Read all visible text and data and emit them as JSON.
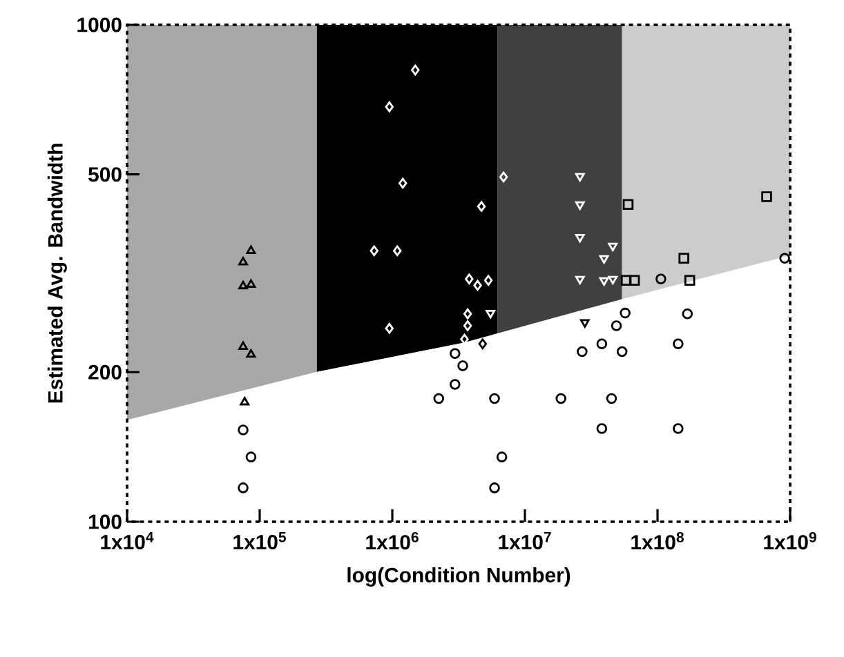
{
  "chart_data": {
    "type": "scatter",
    "xlabel": "log(Condition Number)",
    "ylabel": "Estimated Avg. Bandwidth",
    "log": "xy",
    "grid": false,
    "xlim": [
      10000,
      1000000000
    ],
    "ylim": [
      100,
      1000
    ],
    "xticks": [
      {
        "value": 10000,
        "label": "1x10$^{4}$"
      },
      {
        "value": 100000,
        "label": "1x10$^{5}$"
      },
      {
        "value": 1000000,
        "label": "1x10$^{6}$"
      },
      {
        "value": 10000000,
        "label": "1x10$^{7}$"
      },
      {
        "value": 100000000,
        "label": "1x10$^{8}$"
      },
      {
        "value": 1000000000,
        "label": "1x10$^{9}$"
      }
    ],
    "yticks": [
      100,
      200,
      500,
      1000
    ],
    "bands": [
      {
        "axis": "x",
        "from": 10000,
        "to": 270000,
        "color": "#a8a8a8"
      },
      {
        "axis": "x",
        "from": 270000,
        "to": 6200000,
        "color": "#000000"
      },
      {
        "axis": "x",
        "from": 6200000,
        "to": 54000000,
        "color": "#404040"
      },
      {
        "axis": "x",
        "from": 54000000,
        "to": 1000000000,
        "color": "#cccccc"
      }
    ],
    "series": [
      {
        "type": "area",
        "color": "#ffffff",
        "x": [
          10000,
          270000,
          3500000,
          54000000,
          1000000000
        ],
        "values": [
          160,
          200,
          229,
          280,
          343
        ]
      },
      {
        "marker": "triangle",
        "color": "#000000",
        "x": [
          86000,
          75000,
          75000,
          86000,
          75000,
          86000,
          77000
        ],
        "values": [
          351,
          333,
          298,
          300,
          225,
          217,
          174
        ]
      },
      {
        "marker": "circle",
        "color": "#000000",
        "x": [
          75000,
          86000,
          75000,
          2240000,
          2970000,
          3400000,
          2970000,
          5900000,
          6700000,
          5900000,
          18700000,
          27000000,
          38000000,
          54000000,
          49000000,
          57000000,
          45000000,
          38000000,
          106000000,
          168000000,
          143000000,
          143000000,
          910000000
        ],
        "values": [
          153,
          135,
          117,
          177,
          189,
          206,
          218,
          177,
          135,
          117,
          177,
          220,
          228,
          220,
          248,
          263,
          177,
          154,
          308,
          262,
          228,
          154,
          339
        ]
      },
      {
        "marker": "square",
        "color": "#000000",
        "x": [
          60000000,
          158000000,
          175000000,
          58000000,
          67000000,
          665000000
        ],
        "values": [
          435,
          339,
          306,
          306,
          306,
          451
        ]
      },
      {
        "marker": "diamond",
        "color": "#ffffff",
        "x": [
          1490000,
          950000,
          1200000,
          4700000,
          730000,
          1090000,
          3800000,
          4400000,
          3700000,
          3700000,
          3500000,
          950000,
          6900000,
          5300000
        ],
        "values": [
          811,
          684,
          480,
          431,
          351,
          351,
          308,
          299,
          262,
          248,
          233,
          245,
          494,
          306
        ]
      },
      {
        "marker": "diamond",
        "color": "#000000",
        "x": [
          4800000
        ],
        "values": [
          228
        ]
      },
      {
        "marker": "triangle down",
        "color": "#ffffff",
        "x": [
          26000000,
          26000000,
          26000000,
          46000000,
          39500000,
          26000000,
          39500000,
          46000000,
          5500000
        ],
        "values": [
          496,
          435,
          374,
          359,
          339,
          308,
          306,
          308,
          263
        ]
      },
      {
        "marker": "triangle down",
        "color": "#000000",
        "x": [
          28300000
        ],
        "values": [
          252
        ]
      }
    ]
  }
}
